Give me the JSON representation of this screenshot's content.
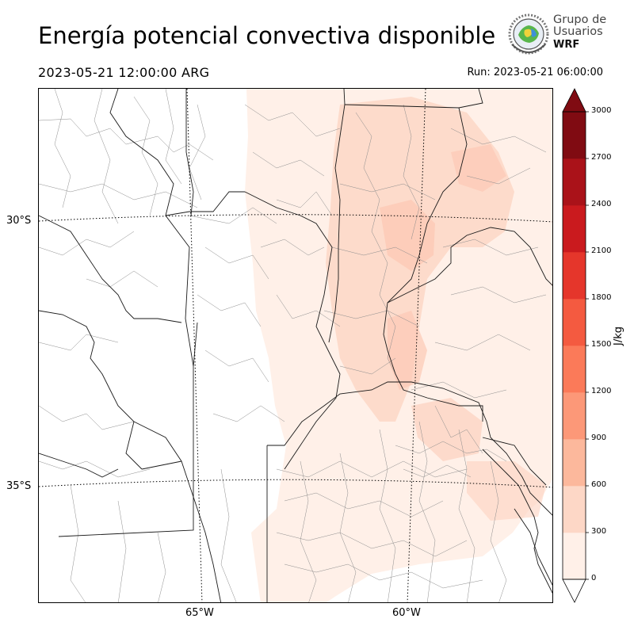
{
  "header": {
    "title": "Energía potencial convectiva disponible",
    "valid_time": "2023-05-21 12:00:00 ARG",
    "run_time": "Run: 2023-05-21 06:00:00"
  },
  "logo": {
    "line1": "Grupo de",
    "line2": "Usuarios",
    "line3": "WRF"
  },
  "map": {
    "variable": "CAPE",
    "lat_labels": [
      "30°S",
      "35°S"
    ],
    "lon_labels": [
      "65°W",
      "60°W"
    ]
  },
  "colorbar": {
    "unit": "J/kg",
    "ticks": [
      "0",
      "300",
      "600",
      "900",
      "1200",
      "1500",
      "1800",
      "2100",
      "2400",
      "2700",
      "3000"
    ],
    "colors": [
      "#fff0e8",
      "#fdd7c6",
      "#fcb89c",
      "#fc9878",
      "#fb7a59",
      "#f45a40",
      "#e5362b",
      "#ca1a1e",
      "#aa1219",
      "#800b12"
    ],
    "extend": "both"
  }
}
